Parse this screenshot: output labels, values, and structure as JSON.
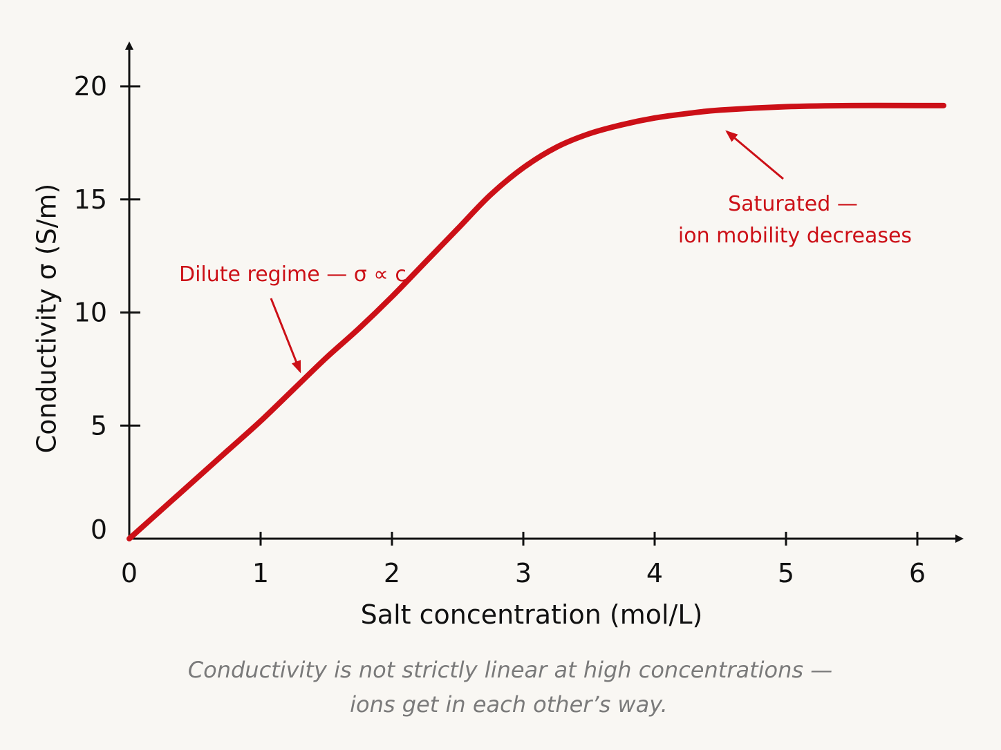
{
  "chart_data": {
    "type": "line",
    "title": "",
    "xlabel": "Salt concentration (mol/L)",
    "ylabel": "Conductivity σ (S/m)",
    "xlim": [
      0,
      6.25
    ],
    "ylim": [
      0,
      20
    ],
    "x_ticks": [
      "0",
      "1",
      "2",
      "3",
      "4",
      "5",
      "6"
    ],
    "y_ticks": [
      "0",
      "5",
      "10",
      "15",
      "20"
    ],
    "grid": false,
    "series": [
      {
        "color": "#cc1017",
        "x": [
          0,
          0.25,
          0.5,
          0.75,
          1,
          1.25,
          1.5,
          1.75,
          2,
          2.25,
          2.5,
          2.75,
          3,
          3.25,
          3.5,
          3.75,
          4,
          4.25,
          4.5,
          5,
          5.5,
          6,
          6.2
        ],
        "y": [
          0,
          1.3,
          2.6,
          3.9,
          5.2,
          6.6,
          8.0,
          9.3,
          10.7,
          12.2,
          13.7,
          15.2,
          16.4,
          17.3,
          17.9,
          18.3,
          18.6,
          18.8,
          18.95,
          19.1,
          19.15,
          19.15,
          19.15
        ]
      }
    ],
    "annotations": [
      {
        "text": "Dilute regime — σ ∝ c",
        "color": "#cc1017",
        "points_to": {
          "x": 1.3,
          "y": 7.4
        }
      },
      {
        "text": "Saturated —",
        "color": "#cc1017",
        "points_to": {
          "x": 4.55,
          "y": 18.0
        }
      },
      {
        "text": "ion mobility decreases",
        "color": "#cc1017"
      }
    ]
  },
  "caption": {
    "line1": "Conductivity is not strictly linear at high concentrations —",
    "line2": "ions get in each other’s way."
  }
}
